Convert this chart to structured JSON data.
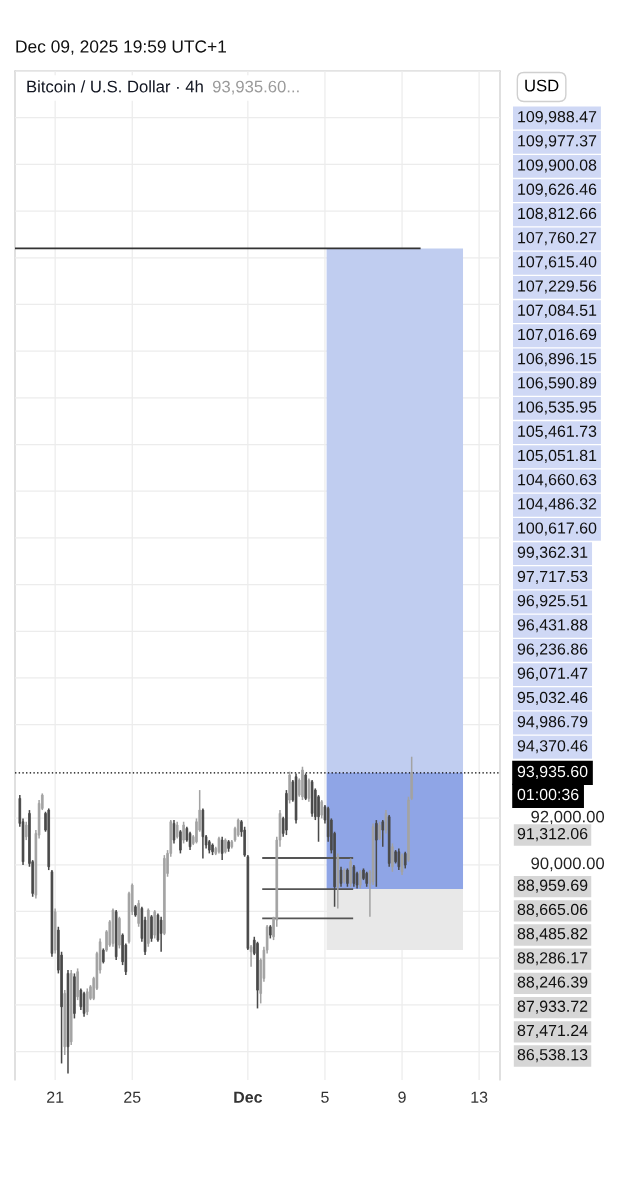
{
  "chart_data": {
    "type": "candlestick",
    "title": "Bitcoin / U.S. Dollar · 4h",
    "subtitle": "93,935.60...",
    "ylabel": "USD",
    "x": [
      "2025-11-19T04:00",
      "2025-11-19T08:00",
      "2025-11-19T12:00",
      "2025-11-19T16:00",
      "2025-11-19T20:00",
      "2025-11-20T00:00",
      "2025-11-20T04:00",
      "2025-11-20T08:00",
      "2025-11-20T12:00",
      "2025-11-20T16:00",
      "2025-11-20T20:00",
      "2025-11-21T00:00",
      "2025-11-21T04:00",
      "2025-11-21T08:00",
      "2025-11-21T12:00",
      "2025-11-21T16:00",
      "2025-11-21T20:00",
      "2025-11-22T00:00",
      "2025-11-22T04:00",
      "2025-11-22T08:00",
      "2025-11-22T12:00",
      "2025-11-22T16:00",
      "2025-11-22T20:00",
      "2025-11-23T00:00",
      "2025-11-23T04:00",
      "2025-11-23T08:00",
      "2025-11-23T12:00",
      "2025-11-23T16:00",
      "2025-11-23T20:00",
      "2025-11-24T00:00",
      "2025-11-24T04:00",
      "2025-11-24T08:00",
      "2025-11-24T12:00",
      "2025-11-24T16:00",
      "2025-11-24T20:00",
      "2025-11-25T00:00",
      "2025-11-25T04:00",
      "2025-11-25T08:00",
      "2025-11-25T12:00",
      "2025-11-25T16:00",
      "2025-11-25T20:00",
      "2025-11-26T00:00",
      "2025-11-26T04:00",
      "2025-11-26T08:00",
      "2025-11-26T12:00",
      "2025-11-26T16:00",
      "2025-11-26T20:00",
      "2025-11-27T00:00",
      "2025-11-27T04:00",
      "2025-11-27T08:00",
      "2025-11-27T12:00",
      "2025-11-27T16:00",
      "2025-11-27T20:00",
      "2025-11-28T00:00",
      "2025-11-28T04:00",
      "2025-11-28T08:00",
      "2025-11-28T12:00",
      "2025-11-28T16:00",
      "2025-11-28T20:00",
      "2025-11-29T00:00",
      "2025-11-29T04:00",
      "2025-11-29T08:00",
      "2025-11-29T12:00",
      "2025-11-29T16:00",
      "2025-11-29T20:00",
      "2025-11-30T00:00",
      "2025-11-30T04:00",
      "2025-11-30T08:00",
      "2025-11-30T12:00",
      "2025-11-30T16:00",
      "2025-11-30T20:00",
      "2025-12-01T00:00",
      "2025-12-01T04:00",
      "2025-12-01T08:00",
      "2025-12-01T12:00",
      "2025-12-01T16:00",
      "2025-12-01T20:00",
      "2025-12-02T00:00",
      "2025-12-02T04:00",
      "2025-12-02T08:00",
      "2025-12-02T12:00",
      "2025-12-02T16:00",
      "2025-12-02T20:00",
      "2025-12-03T00:00",
      "2025-12-03T04:00",
      "2025-12-03T08:00",
      "2025-12-03T12:00",
      "2025-12-03T16:00",
      "2025-12-03T20:00",
      "2025-12-04T00:00",
      "2025-12-04T04:00",
      "2025-12-04T08:00",
      "2025-12-04T12:00",
      "2025-12-04T16:00",
      "2025-12-04T20:00",
      "2025-12-05T00:00",
      "2025-12-05T04:00",
      "2025-12-05T08:00",
      "2025-12-05T12:00",
      "2025-12-05T16:00",
      "2025-12-05T20:00",
      "2025-12-06T00:00",
      "2025-12-06T04:00",
      "2025-12-06T08:00",
      "2025-12-06T12:00",
      "2025-12-06T16:00",
      "2025-12-06T20:00",
      "2025-12-07T00:00",
      "2025-12-07T04:00",
      "2025-12-07T08:00",
      "2025-12-07T12:00",
      "2025-12-07T16:00",
      "2025-12-07T20:00",
      "2025-12-08T00:00",
      "2025-12-08T04:00",
      "2025-12-08T08:00",
      "2025-12-08T12:00",
      "2025-12-08T16:00",
      "2025-12-08T20:00",
      "2025-12-09T00:00",
      "2025-12-09T04:00",
      "2025-12-09T08:00",
      "2025-12-09T12:00"
    ],
    "ohlc": [
      [
        92840,
        92985,
        91628,
        91770
      ],
      [
        91842,
        91985,
        89986,
        90129
      ],
      [
        91200,
        91842,
        91057,
        91699
      ],
      [
        92199,
        92342,
        89914,
        90057
      ],
      [
        90129,
        90200,
        88629,
        88772
      ],
      [
        88701,
        91485,
        88558,
        91342
      ],
      [
        91271,
        92770,
        91128,
        92628
      ],
      [
        92413,
        93056,
        92342,
        92985
      ],
      [
        92199,
        92271,
        91414,
        91485
      ],
      [
        92342,
        92413,
        89772,
        89914
      ],
      [
        89700,
        89772,
        86059,
        86202
      ],
      [
        86344,
        88129,
        86202,
        87987
      ],
      [
        87201,
        87344,
        85345,
        85488
      ],
      [
        86130,
        86273,
        81489,
        83917
      ],
      [
        82203,
        84631,
        81846,
        84488
      ],
      [
        85345,
        85488,
        81061,
        82203
      ],
      [
        82417,
        85488,
        82275,
        85345
      ],
      [
        85202,
        85345,
        83417,
        83631
      ],
      [
        84345,
        85559,
        84202,
        85416
      ],
      [
        84631,
        84702,
        83774,
        83917
      ],
      [
        84488,
        84559,
        83488,
        83631
      ],
      [
        83703,
        84702,
        83560,
        84559
      ],
      [
        84274,
        84845,
        84202,
        84773
      ],
      [
        84274,
        85202,
        84202,
        85131
      ],
      [
        84702,
        86273,
        84631,
        86202
      ],
      [
        85488,
        86844,
        85345,
        86701
      ],
      [
        86344,
        86416,
        85773,
        85845
      ],
      [
        86344,
        87201,
        86273,
        87130
      ],
      [
        86559,
        87630,
        86487,
        87558
      ],
      [
        86630,
        88129,
        86487,
        88058
      ],
      [
        87987,
        88058,
        85916,
        86059
      ],
      [
        86559,
        87772,
        86416,
        87701
      ],
      [
        86987,
        87058,
        85702,
        85845
      ],
      [
        86559,
        86630,
        85273,
        85416
      ],
      [
        86701,
        88843,
        86630,
        88772
      ],
      [
        87987,
        89200,
        87844,
        89129
      ],
      [
        88201,
        88272,
        87772,
        87844
      ],
      [
        87487,
        88486,
        87344,
        88344
      ],
      [
        88129,
        88201,
        86701,
        86844
      ],
      [
        87630,
        87772,
        86130,
        86273
      ],
      [
        86630,
        88129,
        86487,
        88058
      ],
      [
        87772,
        87844,
        86701,
        86844
      ],
      [
        86987,
        88058,
        86844,
        87987
      ],
      [
        87844,
        87915,
        86701,
        86773
      ],
      [
        87630,
        87772,
        86273,
        87058
      ],
      [
        87058,
        90414,
        86987,
        90271
      ],
      [
        89628,
        90628,
        89486,
        90486
      ],
      [
        90486,
        91914,
        90343,
        91842
      ],
      [
        91771,
        91914,
        90914,
        91057
      ],
      [
        91200,
        91842,
        91128,
        91699
      ],
      [
        91414,
        91485,
        90486,
        90628
      ],
      [
        91057,
        91842,
        90914,
        91699
      ],
      [
        91557,
        91628,
        90985,
        91057
      ],
      [
        91342,
        91414,
        90628,
        90771
      ],
      [
        90914,
        91271,
        90843,
        91200
      ],
      [
        90985,
        91985,
        90914,
        91842
      ],
      [
        91485,
        93199,
        91414,
        92342
      ],
      [
        92342,
        92413,
        90271,
        91200
      ],
      [
        91200,
        91271,
        90700,
        90843
      ],
      [
        90985,
        91057,
        90486,
        90628
      ],
      [
        90843,
        90914,
        90414,
        90557
      ],
      [
        90486,
        90771,
        90414,
        90700
      ],
      [
        90557,
        91200,
        90486,
        91128
      ],
      [
        91057,
        91200,
        90200,
        90486
      ],
      [
        90557,
        91128,
        90486,
        91057
      ],
      [
        90985,
        91057,
        90557,
        90700
      ],
      [
        90771,
        91057,
        90700,
        90985
      ],
      [
        91057,
        91628,
        90985,
        91557
      ],
      [
        91271,
        91985,
        91200,
        91914
      ],
      [
        91842,
        91914,
        91200,
        91414
      ],
      [
        91485,
        91628,
        90343,
        90414
      ],
      [
        90343,
        90414,
        86344,
        86416
      ],
      [
        86273,
        86559,
        85630,
        86487
      ],
      [
        86773,
        86915,
        86130,
        86202
      ],
      [
        86630,
        86701,
        83846,
        84631
      ],
      [
        84488,
        85988,
        84060,
        85916
      ],
      [
        85131,
        86487,
        84988,
        86344
      ],
      [
        86344,
        87415,
        86202,
        87344
      ],
      [
        87344,
        87415,
        86844,
        86987
      ],
      [
        86915,
        87772,
        86773,
        87701
      ],
      [
        87630,
        91200,
        87344,
        91057
      ],
      [
        91057,
        92342,
        90771,
        92199
      ],
      [
        91985,
        92056,
        91200,
        91342
      ],
      [
        93056,
        93199,
        91271,
        91485
      ],
      [
        92771,
        93985,
        92628,
        93842
      ],
      [
        93556,
        93627,
        92699,
        92771
      ],
      [
        93770,
        93913,
        91771,
        91914
      ],
      [
        92985,
        93699,
        92913,
        93627
      ],
      [
        92913,
        94199,
        92771,
        94056
      ],
      [
        93842,
        93913,
        92771,
        92842
      ],
      [
        92842,
        93699,
        92699,
        93627
      ],
      [
        93556,
        93627,
        92057,
        92199
      ],
      [
        93199,
        93270,
        91914,
        92057
      ],
      [
        92913,
        92985,
        90986,
        92057
      ],
      [
        92128,
        92771,
        91985,
        92699
      ],
      [
        92485,
        92556,
        91771,
        91914
      ],
      [
        92414,
        92485,
        90986,
        91200
      ],
      [
        91914,
        91985,
        90486,
        90629
      ],
      [
        91343,
        91414,
        88201,
        89057
      ],
      [
        89057,
        90486,
        88130,
        90343
      ],
      [
        89772,
        89915,
        89057,
        89200
      ],
      [
        89272,
        89843,
        89200,
        89772
      ],
      [
        89772,
        89843,
        89057,
        89200
      ],
      [
        89200,
        90272,
        89057,
        90129
      ],
      [
        89915,
        89986,
        89057,
        89200
      ],
      [
        89629,
        89700,
        88986,
        89129
      ],
      [
        89129,
        89772,
        88986,
        89700
      ],
      [
        89772,
        89843,
        89343,
        89415
      ],
      [
        89629,
        89700,
        89057,
        89200
      ],
      [
        89200,
        89772,
        87773,
        89700
      ],
      [
        89272,
        91771,
        89129,
        91628
      ],
      [
        91771,
        91914,
        89057,
        91057
      ],
      [
        91128,
        91842,
        91057,
        91700
      ],
      [
        91842,
        91914,
        90771,
        91485
      ],
      [
        91485,
        92342,
        91343,
        92199
      ],
      [
        92057,
        92128,
        89915,
        90057
      ],
      [
        89915,
        90914,
        89700,
        90771
      ],
      [
        90557,
        90629,
        90057,
        90129
      ],
      [
        90557,
        90700,
        89772,
        89915
      ],
      [
        89700,
        90486,
        89557,
        90414
      ],
      [
        90486,
        90557,
        89843,
        89986
      ],
      [
        90200,
        92913,
        90129,
        92771
      ],
      [
        92842,
        94627,
        92771,
        93935.6
      ]
    ],
    "series": [
      {
        "type": "bar",
        "x": [
          "2025-12-08T15:00"
        ],
        "base": [
          93940
        ],
        "values": [
          22460
        ],
        "color": "#c0cdf0"
      },
      {
        "type": "bar",
        "x": [
          "2025-12-08T15:00"
        ],
        "base": [
          86350
        ],
        "values": [
          2610
        ],
        "color": "#e8e8e8"
      },
      {
        "type": "bar",
        "x": [
          "2025-12-08T15:00"
        ],
        "base": [
          88960
        ],
        "values": [
          4980
        ],
        "color": "#8fa5e6"
      },
      {
        "type": "line",
        "x": [
          "2025-11-18T22:00",
          "2025-12-09T22:00"
        ],
        "values": [
          116400,
          116400
        ],
        "color": "#333333"
      },
      {
        "type": "line",
        "x": [
          "2025-12-01T19:00",
          "2025-12-06T10:00"
        ],
        "values": [
          90290,
          90290
        ],
        "color": "#555555"
      },
      {
        "type": "line",
        "x": [
          "2025-12-01T19:00",
          "2025-12-06T10:00"
        ],
        "values": [
          88960,
          88960
        ],
        "color": "#555555"
      },
      {
        "type": "line",
        "x": [
          "2025-12-01T19:00",
          "2025-12-06T10:00"
        ],
        "values": [
          87700,
          87700
        ],
        "color": "#555555"
      }
    ],
    "ref_lines": [
      {
        "axis": "y",
        "value": 93935.6,
        "label": "93,935.60",
        "color": "#000000",
        "line_style": "dotted"
      }
    ],
    "xlim": [
      "2025-11-18T22:00",
      "2025-12-14T02:00"
    ],
    "xticks": [
      {
        "value": "2025-11-21",
        "label": "21"
      },
      {
        "value": "2025-11-25",
        "label": "25"
      },
      {
        "value": "2025-12-01",
        "label": "Dec"
      },
      {
        "value": "2025-12-05",
        "label": "5"
      },
      {
        "value": "2025-12-09",
        "label": "9"
      },
      {
        "value": "2025-12-13",
        "label": "13"
      }
    ],
    "ylim": [
      80780,
      124000
    ],
    "yticks": [
      {
        "value": 82000,
        "label": null
      },
      {
        "value": 84000,
        "label": null
      },
      {
        "value": 86000,
        "label": null
      },
      {
        "value": 88000,
        "label": null
      },
      {
        "value": 90000,
        "label": "90,000.00"
      },
      {
        "value": 92000,
        "label": "92,000.00"
      },
      {
        "value": 96000,
        "label": null
      },
      {
        "value": 98000,
        "label": null
      },
      {
        "value": 100000,
        "label": null
      },
      {
        "value": 102000,
        "label": null
      },
      {
        "value": 104000,
        "label": null
      },
      {
        "value": 106000,
        "label": null
      },
      {
        "value": 108000,
        "label": null
      },
      {
        "value": 110000,
        "label": null
      },
      {
        "value": 112000,
        "label": null
      },
      {
        "value": 114000,
        "label": null
      },
      {
        "value": 116000,
        "label": null
      },
      {
        "value": 118000,
        "label": null
      },
      {
        "value": 120000,
        "label": null
      },
      {
        "value": 122000,
        "label": null
      },
      {
        "value": 124000,
        "label": null
      }
    ],
    "grid": true,
    "annotations": [
      "Dec 09, 2025 19:59 UTC+1",
      "109,988.47",
      "109,977.37",
      "109,900.08",
      "109,626.46",
      "108,812.66",
      "107,760.27",
      "107,615.40",
      "107,229.56",
      "107,084.51",
      "107,016.69",
      "106,896.15",
      "106,590.89",
      "106,535.95",
      "105,461.73",
      "105,051.81",
      "104,660.63",
      "104,486.32",
      "100,617.60",
      "99,362.31",
      "97,717.53",
      "96,925.51",
      "96,431.88",
      "96,236.86",
      "96,071.47",
      "95,032.46",
      "94,986.79",
      "94,370.46",
      "01:00:36",
      "91,312.06",
      "88,959.69",
      "88,665.06",
      "88,485.82",
      "88,286.17",
      "88,246.39",
      "87,933.72",
      "87,471.24",
      "86,538.13"
    ]
  }
}
